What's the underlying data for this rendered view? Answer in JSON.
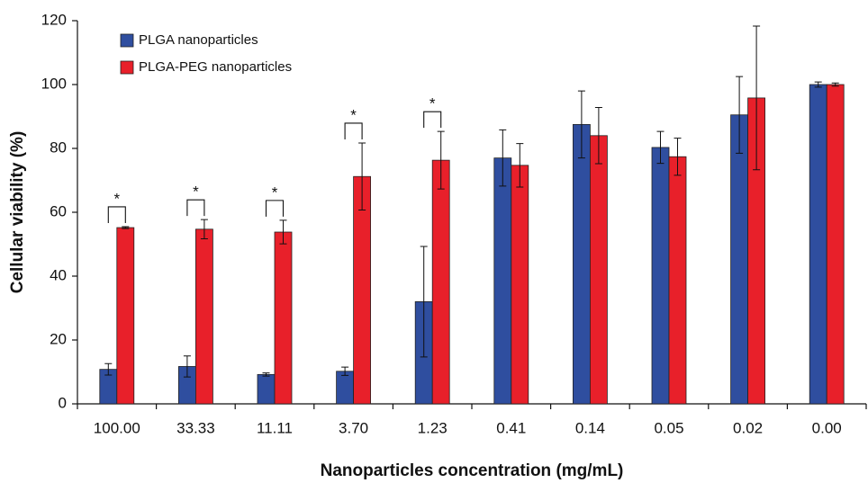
{
  "chart_data": {
    "type": "bar",
    "ylabel": "Cellular viability (%)",
    "xlabel": "Nanoparticles concentration (mg/mL)",
    "categories": [
      "100.00",
      "33.33",
      "11.11",
      "3.70",
      "1.23",
      "0.41",
      "0.14",
      "0.05",
      "0.02",
      "0.00"
    ],
    "series": [
      {
        "name": "PLGA nanoparticles",
        "color": "#2f4e9f",
        "values": [
          10.8,
          11.7,
          9.2,
          10.2,
          32,
          77,
          87.5,
          80.3,
          90.5,
          100
        ],
        "errors": [
          1.8,
          3.3,
          0.5,
          1.3,
          17.3,
          8.8,
          10.5,
          5,
          12,
          0.8
        ]
      },
      {
        "name": "PLGA-PEG nanoparticles",
        "color": "#e8202a",
        "values": [
          55.2,
          54.7,
          53.8,
          71.2,
          76.3,
          74.7,
          84,
          77.4,
          95.8,
          100
        ],
        "errors": [
          0.3,
          3,
          3.7,
          10.5,
          9,
          6.8,
          8.8,
          5.8,
          22.5,
          0.5
        ]
      }
    ],
    "significance": [
      "*",
      "*",
      "*",
      "*",
      "*",
      null,
      null,
      null,
      null,
      null
    ],
    "ylim": [
      0,
      120
    ],
    "yticks": [
      0,
      20,
      40,
      60,
      80,
      100,
      120
    ],
    "legend": "upper left"
  }
}
